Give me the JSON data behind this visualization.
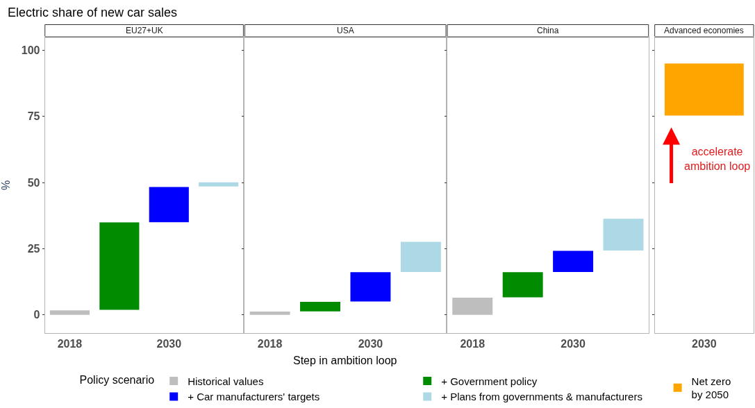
{
  "chart_data": [
    {
      "type": "bar",
      "title": "Electric share of new car sales",
      "subtitle": "EU27+UK",
      "categories": [
        "2018",
        null,
        "2030",
        null
      ],
      "ylabel": "%",
      "ylim": [
        -7,
        105
      ],
      "yticks": [
        0,
        25,
        50,
        75,
        100
      ],
      "legend": "bottom",
      "legend_title": "Policy scenario",
      "series": [
        {
          "name": "Historical values",
          "color": "#bebebe",
          "values": [
            1.7,
            null,
            null,
            null
          ],
          "base": [
            0,
            null,
            null,
            null
          ]
        },
        {
          "name": "+ Government policy",
          "color": "#008b00",
          "values": [
            null,
            33,
            null,
            null
          ],
          "base": [
            null,
            1.9,
            null,
            null
          ]
        },
        {
          "name": "+ Car manufacturers' targets",
          "color": "#0000ff",
          "values": [
            null,
            null,
            13.3,
            null
          ],
          "base": [
            null,
            null,
            35,
            null
          ]
        },
        {
          "name": "+ Plans from governments & manufacturers",
          "color": "#add8e6",
          "values": [
            null,
            null,
            null,
            1.6
          ],
          "base": [
            null,
            null,
            null,
            48.5
          ]
        }
      ]
    },
    {
      "type": "bar",
      "title": "USA",
      "xlabel": "Step in ambition loop",
      "categories": [
        "2018",
        null,
        "2030",
        null
      ],
      "ylim": [
        -7,
        105
      ],
      "yticks": [
        0,
        25,
        50,
        75,
        100
      ],
      "tick_labels": "x",
      "series": [
        {
          "color": "#bebebe",
          "values": [
            1.2,
            null,
            null,
            null
          ],
          "base": [
            0,
            null,
            null,
            null
          ]
        },
        {
          "color": "#008b00",
          "values": [
            null,
            3.6,
            null,
            null
          ],
          "base": [
            null,
            1.3,
            null,
            null
          ]
        },
        {
          "color": "#0000ff",
          "values": [
            null,
            null,
            11.1,
            null
          ],
          "base": [
            null,
            null,
            5,
            null
          ]
        },
        {
          "color": "#add8e6",
          "values": [
            null,
            null,
            null,
            11.4
          ],
          "base": [
            null,
            null,
            null,
            16.2
          ]
        }
      ]
    },
    {
      "type": "bar",
      "title": "China",
      "categories": [
        "2018",
        null,
        "2030",
        null
      ],
      "ylim": [
        -7,
        105
      ],
      "yticks": [
        0,
        25,
        50,
        75,
        100
      ],
      "tick_labels": "x",
      "series": [
        {
          "color": "#bebebe",
          "values": [
            6.5,
            null,
            null,
            null
          ],
          "base": [
            0,
            null,
            null,
            null
          ]
        },
        {
          "color": "#008b00",
          "values": [
            null,
            9.5,
            null,
            null
          ],
          "base": [
            null,
            6.6,
            null,
            null
          ]
        },
        {
          "color": "#0000ff",
          "values": [
            null,
            null,
            8,
            null
          ],
          "base": [
            null,
            null,
            16.2,
            null
          ]
        },
        {
          "color": "#add8e6",
          "values": [
            null,
            null,
            null,
            12
          ],
          "base": [
            null,
            null,
            null,
            24.3
          ]
        }
      ]
    },
    {
      "type": "bar",
      "title": "Advanced economies",
      "categories": [
        "2030"
      ],
      "ylim": [
        -7,
        105
      ],
      "yticks": [
        0,
        25,
        50,
        75,
        100
      ],
      "tick_labels": "x",
      "legend": "bottom right",
      "annotations": [
        "accelerate\nambition loop"
      ],
      "series": [
        {
          "name": "Net zero\nby 2050",
          "color": "#ffa500",
          "values": [
            19.7
          ],
          "base": [
            75.3
          ]
        }
      ]
    }
  ]
}
